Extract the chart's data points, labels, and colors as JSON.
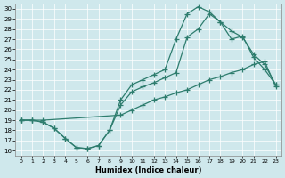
{
  "xlabel": "Humidex (Indice chaleur)",
  "bg_color": "#cfe8ec",
  "line_color": "#2e7d6e",
  "xlim": [
    -0.5,
    23.5
  ],
  "ylim": [
    15.5,
    30.5
  ],
  "xticks": [
    0,
    1,
    2,
    3,
    4,
    5,
    6,
    7,
    8,
    9,
    10,
    11,
    12,
    13,
    14,
    15,
    16,
    17,
    18,
    19,
    20,
    21,
    22,
    23
  ],
  "yticks": [
    16,
    17,
    18,
    19,
    20,
    21,
    22,
    23,
    24,
    25,
    26,
    27,
    28,
    29,
    30
  ],
  "curve1_x": [
    0,
    1,
    2,
    3,
    4,
    5,
    6,
    7,
    8,
    9,
    10,
    11,
    12,
    13,
    14,
    15,
    16,
    17,
    18,
    19,
    20,
    21,
    22,
    23
  ],
  "curve1_y": [
    19.0,
    19.0,
    18.8,
    18.2,
    17.2,
    16.3,
    16.2,
    16.5,
    18.0,
    21.0,
    22.5,
    23.0,
    23.5,
    24.0,
    27.0,
    29.5,
    30.2,
    29.7,
    28.7,
    27.8,
    27.2,
    25.5,
    24.5,
    22.5
  ],
  "curve2_x": [
    0,
    1,
    2,
    3,
    4,
    5,
    6,
    7,
    8,
    9,
    10,
    11,
    12,
    13,
    14,
    15,
    16,
    17,
    18,
    19,
    20,
    21,
    22,
    23
  ],
  "curve2_y": [
    19.0,
    19.0,
    18.8,
    18.2,
    17.2,
    16.3,
    16.2,
    16.5,
    18.0,
    20.5,
    21.8,
    22.3,
    22.7,
    23.2,
    23.7,
    27.2,
    28.0,
    29.5,
    28.7,
    27.0,
    27.3,
    25.2,
    24.0,
    22.5
  ],
  "curve3_x": [
    0,
    1,
    2,
    9,
    10,
    11,
    12,
    13,
    14,
    15,
    16,
    17,
    18,
    19,
    20,
    21,
    22,
    23
  ],
  "curve3_y": [
    19.0,
    19.0,
    19.0,
    19.5,
    20.0,
    20.5,
    21.0,
    21.3,
    21.7,
    22.0,
    22.5,
    23.0,
    23.3,
    23.7,
    24.0,
    24.5,
    24.8,
    22.3
  ]
}
